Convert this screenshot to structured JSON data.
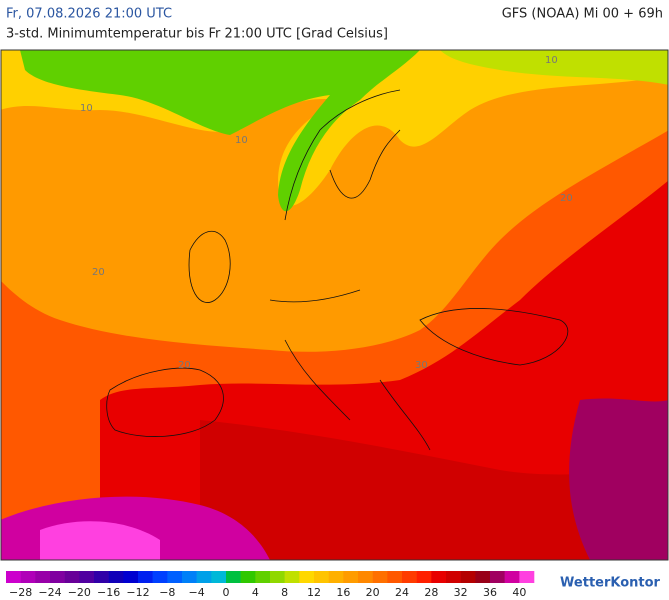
{
  "header": {
    "date": "Fr, 07.08.2026 21:00 UTC",
    "model": "GFS (NOAA) Mi 00 + 69h",
    "subtitle": "3-std. Minimumtemperatur bis Fr 21:00 UTC [Grad Celsius]"
  },
  "map": {
    "contour_labels": [
      "10",
      "10",
      "10",
      "20",
      "20",
      "20",
      "30"
    ]
  },
  "legend": {
    "colors": [
      "#cc00cc",
      "#b000b8",
      "#9800a8",
      "#8000a0",
      "#680098",
      "#5000a0",
      "#3000a8",
      "#1000b8",
      "#0000d0",
      "#0020f0",
      "#0040ff",
      "#0060ff",
      "#0080f8",
      "#00a0e8",
      "#00b8d8",
      "#00c040",
      "#30c800",
      "#60d000",
      "#90d800",
      "#c0e000",
      "#ffd800",
      "#ffc400",
      "#ffb000",
      "#ff9c00",
      "#ff8800",
      "#ff7000",
      "#ff5800",
      "#ff3c00",
      "#ff2000",
      "#e80000",
      "#d00000",
      "#b40000",
      "#980018",
      "#a00060",
      "#d000a0",
      "#ff40e0"
    ],
    "labels": [
      "−28",
      "−24",
      "−20",
      "−16",
      "−12",
      "−8",
      "−4",
      "0",
      "4",
      "8",
      "12",
      "16",
      "20",
      "24",
      "28",
      "32",
      "36",
      "40"
    ]
  },
  "logo": "WetterKontor"
}
